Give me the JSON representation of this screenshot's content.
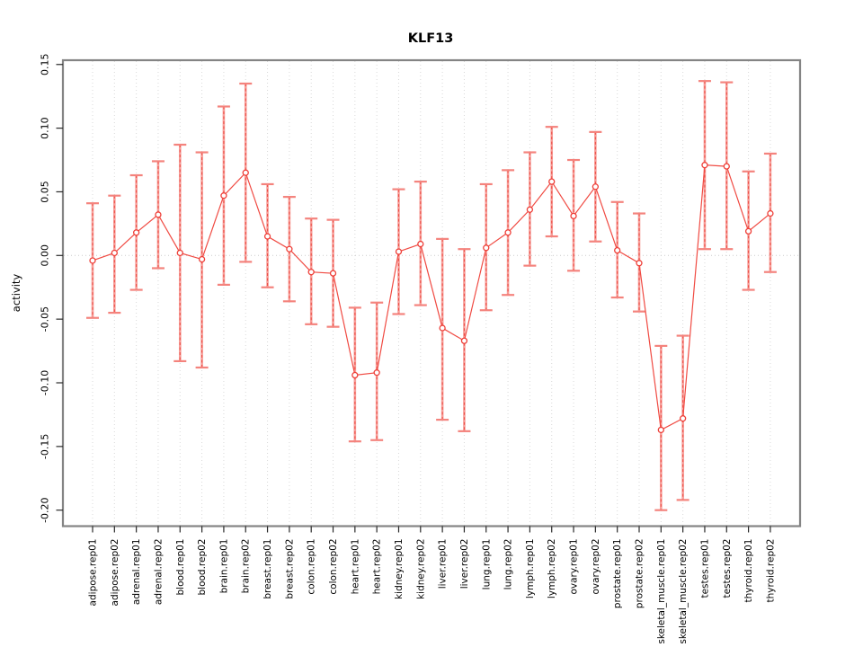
{
  "chart_data": {
    "type": "line",
    "subtype": "points-with-error-bars",
    "title": "KLF13",
    "xlabel": "",
    "ylabel": "activity",
    "legend": "none",
    "grid": {
      "vertical": "dotted-per-category",
      "horizontal": "dotted-zero-line-only"
    },
    "ylim": [
      -0.213,
      0.153
    ],
    "yticks": [
      0.15,
      0.1,
      0.05,
      0.0,
      -0.05,
      -0.1,
      -0.15,
      -0.2
    ],
    "ytick_labels": [
      "0.15",
      "0.10",
      "0.05",
      "0.00",
      "-0.05",
      "-0.10",
      "-0.15",
      "-0.20"
    ],
    "categories": [
      "adipose.rep01",
      "adipose.rep02",
      "adrenal.rep01",
      "adrenal.rep02",
      "blood.rep01",
      "blood.rep02",
      "brain.rep01",
      "brain.rep02",
      "breast.rep01",
      "breast.rep02",
      "colon.rep01",
      "colon.rep02",
      "heart.rep01",
      "heart.rep02",
      "kidney.rep01",
      "kidney.rep02",
      "liver.rep01",
      "liver.rep02",
      "lung.rep01",
      "lung.rep02",
      "lymph.rep01",
      "lymph.rep02",
      "ovary.rep01",
      "ovary.rep02",
      "prostate.rep01",
      "prostate.rep02",
      "skeletal_muscle.rep01",
      "skeletal_muscle.rep02",
      "testes.rep01",
      "testes.rep02",
      "thyroid.rep01",
      "thyroid.rep02"
    ],
    "series": [
      {
        "name": "activity",
        "values": [
          -0.004,
          0.002,
          0.018,
          0.032,
          0.002,
          -0.003,
          0.047,
          0.065,
          0.015,
          0.005,
          -0.013,
          -0.014,
          -0.094,
          -0.092,
          0.003,
          0.009,
          -0.057,
          -0.067,
          0.006,
          0.018,
          0.036,
          0.058,
          0.031,
          0.054,
          0.004,
          -0.006,
          -0.137,
          -0.128,
          0.071,
          0.07,
          0.019,
          0.033
        ],
        "lower": [
          -0.049,
          -0.045,
          -0.027,
          -0.01,
          -0.083,
          -0.088,
          -0.023,
          -0.005,
          -0.025,
          -0.036,
          -0.054,
          -0.056,
          -0.146,
          -0.145,
          -0.046,
          -0.039,
          -0.129,
          -0.138,
          -0.043,
          -0.031,
          -0.008,
          0.015,
          -0.012,
          0.011,
          -0.033,
          -0.044,
          -0.2,
          -0.192,
          0.005,
          0.005,
          -0.027,
          -0.013
        ],
        "upper": [
          0.041,
          0.047,
          0.063,
          0.074,
          0.087,
          0.081,
          0.117,
          0.135,
          0.056,
          0.046,
          0.029,
          0.028,
          -0.041,
          -0.037,
          0.052,
          0.058,
          0.013,
          0.005,
          0.056,
          0.067,
          0.081,
          0.101,
          0.075,
          0.097,
          0.042,
          0.033,
          -0.071,
          -0.063,
          0.137,
          0.136,
          0.066,
          0.08
        ]
      }
    ],
    "colors": {
      "series_line": "#f04a42",
      "point_stroke": "#ee3f38",
      "point_fill": "#ffffff",
      "error_bar_light": "#f69e99",
      "error_bar_dash": "#ee4a42",
      "error_bar_cap": "#f4837d",
      "gridline": "#d9d9d9",
      "zero_line": "#cccccc",
      "plot_border": "#848484",
      "tick": "#2a2a2a",
      "text": "#000000"
    }
  }
}
